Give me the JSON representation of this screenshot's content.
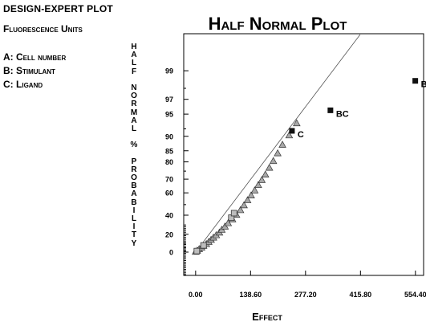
{
  "design": {
    "title": "DESIGN-EXPERT PLOT",
    "response": "Fluorescence Units",
    "factors": [
      {
        "key": "A:",
        "name": "Cell number"
      },
      {
        "key": "B:",
        "name": "Stimulant"
      },
      {
        "key": "C:",
        "name": "Ligand"
      }
    ]
  },
  "chart_data": {
    "type": "scatter",
    "title": "Half Normal Plot",
    "xlabel": "Effect",
    "ylabel": "Half Normal % probability",
    "x_ticks": [
      "0.00",
      "138.60",
      "277.20",
      "415.80",
      "554.40"
    ],
    "x_tick_values": [
      0,
      138.6,
      277.2,
      415.8,
      554.4
    ],
    "xlim": [
      -30,
      575
    ],
    "y_ticks": [
      "0",
      "20",
      "40",
      "60",
      "70",
      "80",
      "85",
      "90",
      "95",
      "97",
      "99"
    ],
    "y_tick_values": [
      0,
      20,
      40,
      60,
      70,
      80,
      85,
      90,
      95,
      97,
      99
    ],
    "y_scale": "half-normal probability",
    "grid": false,
    "fit_line": {
      "x": [
        0,
        415
      ],
      "y": [
        0,
        99.8
      ]
    },
    "labeled_effects": [
      {
        "label": "B",
        "x": 554,
        "y": 98.5
      },
      {
        "label": "BC",
        "x": 340,
        "y": 95.6
      },
      {
        "label": "C",
        "x": 243,
        "y": 91.5
      }
    ],
    "error_points": [
      {
        "x": 0,
        "y": 0.5
      },
      {
        "x": 4,
        "y": 1.8
      },
      {
        "x": 9,
        "y": 3.5
      },
      {
        "x": 15,
        "y": 5.3
      },
      {
        "x": 20,
        "y": 7.2
      },
      {
        "x": 27,
        "y": 9.3
      },
      {
        "x": 33,
        "y": 11.6
      },
      {
        "x": 39,
        "y": 14
      },
      {
        "x": 45,
        "y": 16.5
      },
      {
        "x": 52,
        "y": 19.1
      },
      {
        "x": 60,
        "y": 22
      },
      {
        "x": 66,
        "y": 25
      },
      {
        "x": 74,
        "y": 28.5
      },
      {
        "x": 82,
        "y": 32
      },
      {
        "x": 93,
        "y": 36
      },
      {
        "x": 103,
        "y": 40.5
      },
      {
        "x": 113,
        "y": 45
      },
      {
        "x": 122,
        "y": 49.5
      },
      {
        "x": 131,
        "y": 54
      },
      {
        "x": 140,
        "y": 58
      },
      {
        "x": 149,
        "y": 62
      },
      {
        "x": 158,
        "y": 66
      },
      {
        "x": 167,
        "y": 69.5
      },
      {
        "x": 176,
        "y": 73
      },
      {
        "x": 186,
        "y": 77
      },
      {
        "x": 196,
        "y": 80.5
      },
      {
        "x": 207,
        "y": 84
      },
      {
        "x": 219,
        "y": 87.3
      },
      {
        "x": 236,
        "y": 90.3
      },
      {
        "x": 255,
        "y": 93.3
      }
    ],
    "effect_squares": [
      {
        "x": 3,
        "y": 1.2
      },
      {
        "x": 20,
        "y": 7.6
      },
      {
        "x": 90,
        "y": 37.5
      },
      {
        "x": 97,
        "y": 42
      }
    ]
  }
}
